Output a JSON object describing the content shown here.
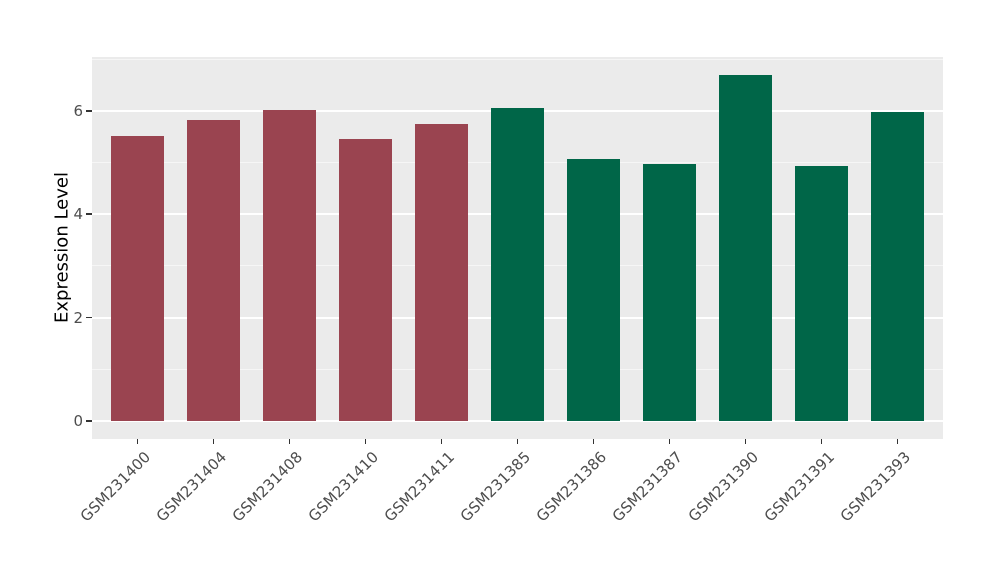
{
  "chart_data": {
    "type": "bar",
    "title": "",
    "ylabel": "Expression Level",
    "xlabel": "",
    "categories": [
      "GSM231400",
      "GSM231404",
      "GSM231408",
      "GSM231410",
      "GSM231411",
      "GSM231385",
      "GSM231386",
      "GSM231387",
      "GSM231390",
      "GSM231391",
      "GSM231393"
    ],
    "values": [
      5.52,
      5.83,
      6.01,
      5.46,
      5.75,
      6.05,
      5.07,
      4.97,
      6.7,
      4.94,
      5.98
    ],
    "bar_colors": [
      "#9A4450",
      "#9A4450",
      "#9A4450",
      "#9A4450",
      "#9A4450",
      "#006648",
      "#006648",
      "#006648",
      "#006648",
      "#006648",
      "#006648"
    ],
    "color_groups": [
      {
        "color": "#9A4450",
        "categories": [
          "GSM231400",
          "GSM231404",
          "GSM231408",
          "GSM231410",
          "GSM231411"
        ]
      },
      {
        "color": "#006648",
        "categories": [
          "GSM231385",
          "GSM231386",
          "GSM231387",
          "GSM231390",
          "GSM231391",
          "GSM231393"
        ]
      }
    ],
    "y_ticks": [
      "0",
      "2",
      "4",
      "6"
    ],
    "y_tick_values": [
      0,
      2,
      4,
      6
    ],
    "y_minor_gridline_values": [
      1,
      3,
      5,
      7
    ],
    "ylim": [
      -0.34,
      7.04
    ],
    "x_tick_rotation_deg": -45,
    "grid": "on",
    "legend": "none",
    "colors": {
      "panel_bg": "#EBEBEB",
      "grid_major": "#FFFFFF",
      "grid_minor": "#FFFFFF",
      "tick_label": "#4D4D4D",
      "tick_mark": "#333333",
      "axis_title": "#000000",
      "figure_bg": "#FFFFFF"
    }
  }
}
